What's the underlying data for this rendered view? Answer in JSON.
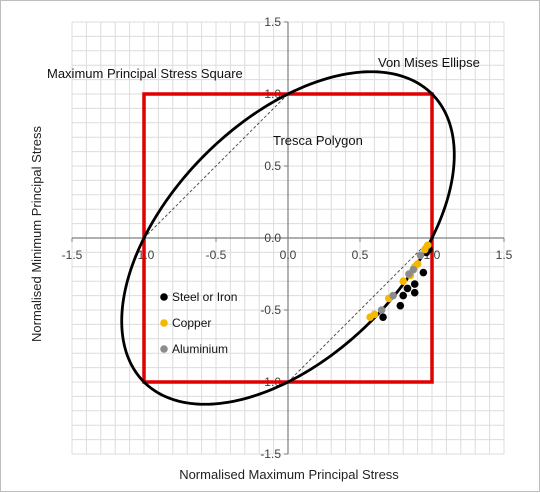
{
  "chart_data": {
    "type": "scatter",
    "xlabel": "Normalised Maximum Principal Stress",
    "ylabel": "Normalised Minimum Principal Stress",
    "xlim": [
      -1.5,
      1.5
    ],
    "ylim": [
      -1.5,
      1.5
    ],
    "x_ticks": [
      "-1.5",
      "-1.0",
      "-0.5",
      "0.0",
      "0.5",
      "1.0",
      "1.5"
    ],
    "y_ticks": [
      "1.5",
      "1.0",
      "0.5",
      "0.0",
      "-0.5",
      "-1.0",
      "-1.5"
    ],
    "grid": true,
    "annotations": {
      "square": "Maximum Principal Stress Square",
      "ellipse": "Von Mises Ellipse",
      "tresca": "Tresca Polygon"
    },
    "legend_position": "lower-left inside",
    "series": [
      {
        "name": "Steel or Iron",
        "color": "#000000",
        "points": [
          [
            0.98,
            -0.08
          ],
          [
            0.96,
            -0.1
          ],
          [
            0.94,
            -0.24
          ],
          [
            0.88,
            -0.32
          ],
          [
            0.83,
            -0.35
          ],
          [
            0.88,
            -0.38
          ],
          [
            0.8,
            -0.4
          ],
          [
            0.78,
            -0.47
          ],
          [
            0.66,
            -0.55
          ]
        ]
      },
      {
        "name": "Copper",
        "color": "#f5b800",
        "points": [
          [
            0.97,
            -0.05
          ],
          [
            0.95,
            -0.08
          ],
          [
            0.9,
            -0.18
          ],
          [
            0.88,
            -0.2
          ],
          [
            0.85,
            -0.26
          ],
          [
            0.8,
            -0.3
          ],
          [
            0.7,
            -0.42
          ],
          [
            0.6,
            -0.53
          ],
          [
            0.57,
            -0.55
          ]
        ]
      },
      {
        "name": "Aluminium",
        "color": "#8c8c8c",
        "points": [
          [
            0.92,
            -0.12
          ],
          [
            0.87,
            -0.22
          ],
          [
            0.84,
            -0.25
          ],
          [
            0.73,
            -0.4
          ],
          [
            0.65,
            -0.5
          ]
        ]
      }
    ],
    "square": {
      "xmin": -1.0,
      "xmax": 1.0,
      "ymin": -1.0,
      "ymax": 1.0,
      "color": "#e00000"
    },
    "ellipse": {
      "color": "#000000"
    },
    "tresca_segments": [
      [
        [
          -1,
          0
        ],
        [
          0,
          1
        ]
      ],
      [
        [
          0,
          -1
        ],
        [
          1,
          0
        ]
      ]
    ]
  }
}
